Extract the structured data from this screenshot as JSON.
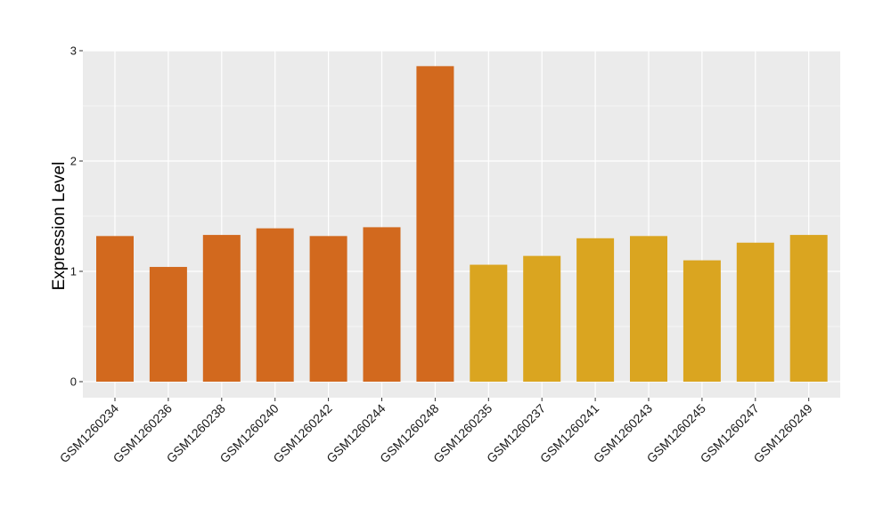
{
  "chart_data": {
    "type": "bar",
    "ylabel": "Expression Level",
    "xlabel": "",
    "title": "",
    "ylim": [
      0,
      3
    ],
    "yticks": [
      0,
      1,
      2,
      3
    ],
    "grid": true,
    "panel_background": "#EBEBEB",
    "gridline_color": "#FFFFFF",
    "categories": [
      "GSM1260234",
      "GSM1260236",
      "GSM1260238",
      "GSM1260240",
      "GSM1260242",
      "GSM1260244",
      "GSM1260248",
      "GSM1260235",
      "GSM1260237",
      "GSM1260241",
      "GSM1260243",
      "GSM1260245",
      "GSM1260247",
      "GSM1260249"
    ],
    "values": [
      1.32,
      1.04,
      1.33,
      1.39,
      1.32,
      1.4,
      2.86,
      1.06,
      1.14,
      1.3,
      1.32,
      1.1,
      1.26,
      1.33
    ],
    "groups": [
      "a",
      "a",
      "a",
      "a",
      "a",
      "a",
      "a",
      "b",
      "b",
      "b",
      "b",
      "b",
      "b",
      "b"
    ],
    "group_colors": {
      "a": "#D2691E",
      "b": "#DAA520"
    }
  }
}
